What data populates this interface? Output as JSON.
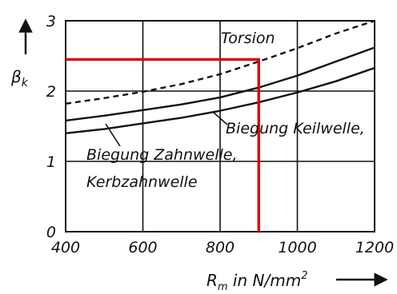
{
  "chart_data": {
    "type": "line",
    "title": "",
    "xlabel": "R_m in N/mm²",
    "xlabel_parts": {
      "main": "R",
      "sub": "m",
      "rest": " in N/mm",
      "sup": "2"
    },
    "ylabel": "β_k",
    "ylabel_parts": {
      "main": "β",
      "sub": "k"
    },
    "xlim": [
      400,
      1200
    ],
    "ylim": [
      0,
      3
    ],
    "x_ticks": [
      400,
      600,
      800,
      1000,
      1200
    ],
    "x_tick_labels": [
      "400",
      "600",
      "800",
      "1000",
      "1200"
    ],
    "y_ticks": [
      0,
      1,
      2,
      3
    ],
    "y_tick_labels": [
      "0",
      "1",
      "2",
      "3"
    ],
    "grid": true,
    "series": [
      {
        "name": "Torsion",
        "style": "dashed",
        "x": [
          400,
          500,
          600,
          700,
          800,
          900,
          1000,
          1100,
          1200
        ],
        "y": [
          1.82,
          1.9,
          1.99,
          2.1,
          2.24,
          2.42,
          2.61,
          2.82,
          3.0
        ]
      },
      {
        "name": "Biegung Keilwelle,",
        "style": "solid",
        "x": [
          400,
          500,
          600,
          700,
          800,
          900,
          1000,
          1100,
          1200
        ],
        "y": [
          1.58,
          1.65,
          1.73,
          1.81,
          1.91,
          2.05,
          2.22,
          2.42,
          2.62
        ]
      },
      {
        "name": "Biegung Zahnwelle, Kerbzahnwelle",
        "style": "solid",
        "x": [
          400,
          500,
          600,
          700,
          800,
          900,
          1000,
          1100,
          1200
        ],
        "y": [
          1.4,
          1.46,
          1.54,
          1.62,
          1.72,
          1.84,
          1.98,
          2.14,
          2.33
        ]
      }
    ],
    "annotations": [
      {
        "text": "Torsion"
      },
      {
        "text": "Biegung Keilwelle,"
      },
      {
        "text": "Biegung Zahnwelle,"
      },
      {
        "text": "Kerbzahnwelle"
      }
    ],
    "reading_line": {
      "x": 900,
      "y": 2.45,
      "color": "#e00000"
    },
    "colors": {
      "curves": "#111111",
      "grid": "#111111",
      "reading": "#e00000"
    }
  }
}
